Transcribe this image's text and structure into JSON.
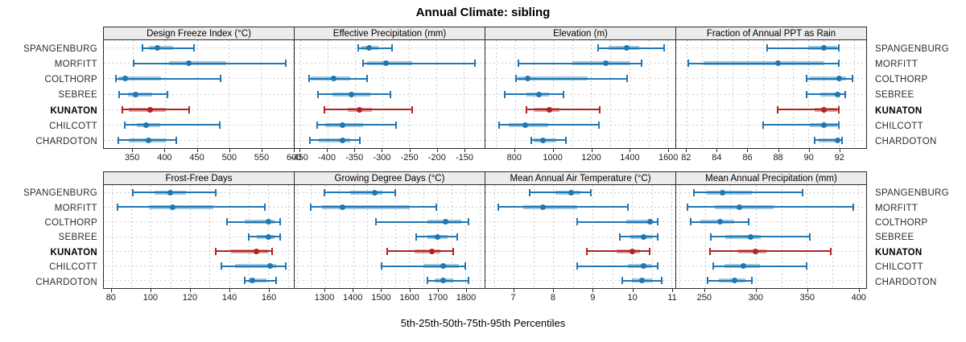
{
  "title": "Annual Climate: sibling",
  "caption": "5th-25th-50th-75th-95th Percentiles",
  "stations": [
    "SPANGENBURG",
    "MORFITT",
    "COLTHORP",
    "SEBREE",
    "KUNATON",
    "CHILCOTT",
    "CHARDOTON"
  ],
  "highlight_station": "KUNATON",
  "colors": {
    "series": "#1f77b4",
    "series_band": "rgba(31,119,180,0.42)",
    "highlight": "#b22222",
    "highlight_band": "rgba(178,34,34,0.42)",
    "strip_bg": "#ececec",
    "panel_border": "#2b2b2b",
    "grid": "#c9c9c9",
    "text": "#1a1a1a"
  },
  "chart_data": [
    {
      "type": "range-dotplot",
      "row": 0,
      "title": "Design Freeze Index (°C)",
      "xlim": [
        305,
        601
      ],
      "ticks": [
        350,
        400,
        450,
        500,
        550,
        600
      ],
      "grid_step": 50,
      "percentile_labels": [
        "p5",
        "p25",
        "p50",
        "p75",
        "p95"
      ],
      "series": [
        {
          "station": "SPANGENBURG",
          "percentiles": [
            365,
            375,
            389,
            413,
            445
          ]
        },
        {
          "station": "MORFITT",
          "percentiles": [
            351,
            406,
            437,
            496,
            589
          ]
        },
        {
          "station": "COLTHORP",
          "percentiles": [
            324,
            327,
            338,
            394,
            487
          ]
        },
        {
          "station": "SEBREE",
          "percentiles": [
            329,
            342,
            354,
            380,
            404
          ]
        },
        {
          "station": "KUNATON",
          "percentiles": [
            334,
            344,
            377,
            401,
            438
          ]
        },
        {
          "station": "CHILCOTT",
          "percentiles": [
            337,
            357,
            371,
            393,
            486
          ]
        },
        {
          "station": "CHARDOTON",
          "percentiles": [
            328,
            344,
            375,
            401,
            418
          ]
        }
      ]
    },
    {
      "type": "range-dotplot",
      "row": 0,
      "title": "Effective Precipitation (mm)",
      "xlim": [
        -460,
        -112
      ],
      "ticks": [
        -450,
        -400,
        -350,
        -300,
        -250,
        -200,
        -150
      ],
      "grid_step": 50,
      "percentile_labels": [
        "p5",
        "p25",
        "p50",
        "p75",
        "p95"
      ],
      "series": [
        {
          "station": "SPANGENBURG",
          "percentiles": [
            -343,
            -337,
            -323,
            -307,
            -282
          ]
        },
        {
          "station": "MORFITT",
          "percentiles": [
            -334,
            -327,
            -292,
            -244,
            -129
          ]
        },
        {
          "station": "COLTHORP",
          "percentiles": [
            -433,
            -430,
            -389,
            -358,
            -327
          ]
        },
        {
          "station": "SEBREE",
          "percentiles": [
            -417,
            -390,
            -356,
            -321,
            -284
          ]
        },
        {
          "station": "KUNATON",
          "percentiles": [
            -406,
            -363,
            -341,
            -319,
            -244
          ]
        },
        {
          "station": "CHILCOTT",
          "percentiles": [
            -419,
            -404,
            -373,
            -334,
            -274
          ]
        },
        {
          "station": "CHARDOTON",
          "percentiles": [
            -432,
            -416,
            -373,
            -358,
            -341
          ]
        }
      ]
    },
    {
      "type": "range-dotplot",
      "row": 0,
      "title": "Elevation (m)",
      "xlim": [
        646,
        1641
      ],
      "ticks": [
        800,
        1000,
        1200,
        1400,
        1600
      ],
      "grid_step": 100,
      "percentile_labels": [
        "p5",
        "p25",
        "p50",
        "p75",
        "p95"
      ],
      "series": [
        {
          "station": "SPANGENBURG",
          "percentiles": [
            1235,
            1290,
            1385,
            1450,
            1580
          ]
        },
        {
          "station": "MORFITT",
          "percentiles": [
            820,
            1100,
            1275,
            1400,
            1465
          ]
        },
        {
          "station": "COLTHORP",
          "percentiles": [
            805,
            815,
            868,
            1180,
            1390
          ]
        },
        {
          "station": "SEBREE",
          "percentiles": [
            746,
            863,
            926,
            981,
            1057
          ]
        },
        {
          "station": "KUNATON",
          "percentiles": [
            863,
            898,
            981,
            1036,
            1243
          ]
        },
        {
          "station": "CHILCOTT",
          "percentiles": [
            718,
            767,
            853,
            974,
            1239
          ]
        },
        {
          "station": "CHARDOTON",
          "percentiles": [
            888,
            905,
            946,
            1016,
            1068
          ]
        }
      ]
    },
    {
      "type": "range-dotplot",
      "row": 0,
      "title": "Fraction of Annual PPT as Rain",
      "xlim": [
        81.3,
        93.8
      ],
      "ticks": [
        82,
        84,
        86,
        88,
        90,
        92
      ],
      "grid_step": 1,
      "percentile_labels": [
        "p5",
        "p25",
        "p50",
        "p75",
        "p95"
      ],
      "series": [
        {
          "station": "SPANGENBURG",
          "percentiles": [
            87.3,
            90.0,
            91.0,
            91.9,
            92.0
          ]
        },
        {
          "station": "MORFITT",
          "percentiles": [
            82.1,
            83.1,
            88.0,
            91.0,
            92.0
          ]
        },
        {
          "station": "COLTHORP",
          "percentiles": [
            89.9,
            90.1,
            92.0,
            92.5,
            92.9
          ]
        },
        {
          "station": "SEBREE",
          "percentiles": [
            89.9,
            90.8,
            91.9,
            92.1,
            92.4
          ]
        },
        {
          "station": "KUNATON",
          "percentiles": [
            88.0,
            90.4,
            91.0,
            91.9,
            92.0
          ]
        },
        {
          "station": "CHILCOTT",
          "percentiles": [
            87.0,
            90.1,
            91.0,
            91.9,
            92.0
          ]
        },
        {
          "station": "CHARDOTON",
          "percentiles": [
            90.4,
            90.7,
            91.9,
            92.0,
            92.2
          ]
        }
      ]
    },
    {
      "type": "range-dotplot",
      "row": 1,
      "title": "Frost-Free Days",
      "xlim": [
        76,
        173
      ],
      "ticks": [
        80,
        100,
        120,
        140,
        160
      ],
      "grid_step": 10,
      "percentile_labels": [
        "p5",
        "p25",
        "p50",
        "p75",
        "p95"
      ],
      "series": [
        {
          "station": "SPANGENBURG",
          "percentiles": [
            91,
            102,
            110,
            118,
            133
          ]
        },
        {
          "station": "MORFITT",
          "percentiles": [
            83,
            99,
            111,
            132,
            158
          ]
        },
        {
          "station": "COLTHORP",
          "percentiles": [
            139,
            148,
            160,
            163,
            166
          ]
        },
        {
          "station": "SEBREE",
          "percentiles": [
            150,
            154,
            160,
            163,
            166
          ]
        },
        {
          "station": "KUNATON",
          "percentiles": [
            133,
            141,
            154,
            160,
            162
          ]
        },
        {
          "station": "CHILCOTT",
          "percentiles": [
            136,
            143,
            161,
            164,
            169
          ]
        },
        {
          "station": "CHARDOTON",
          "percentiles": [
            148,
            150,
            152,
            159,
            164
          ]
        }
      ]
    },
    {
      "type": "range-dotplot",
      "row": 1,
      "title": "Growing Degree Days (°C)",
      "xlim": [
        1192,
        1868
      ],
      "ticks": [
        1300,
        1400,
        1500,
        1600,
        1700,
        1800
      ],
      "grid_step": 50,
      "percentile_labels": [
        "p5",
        "p25",
        "p50",
        "p75",
        "p95"
      ],
      "series": [
        {
          "station": "SPANGENBURG",
          "percentiles": [
            1297,
            1391,
            1477,
            1504,
            1551
          ]
        },
        {
          "station": "MORFITT",
          "percentiles": [
            1248,
            1288,
            1361,
            1603,
            1696
          ]
        },
        {
          "station": "COLTHORP",
          "percentiles": [
            1480,
            1665,
            1730,
            1785,
            1810
          ]
        },
        {
          "station": "SEBREE",
          "percentiles": [
            1625,
            1665,
            1700,
            1735,
            1770
          ]
        },
        {
          "station": "KUNATON",
          "percentiles": [
            1520,
            1620,
            1680,
            1710,
            1755
          ]
        },
        {
          "station": "CHILCOTT",
          "percentiles": [
            1500,
            1650,
            1720,
            1775,
            1800
          ]
        },
        {
          "station": "CHARDOTON",
          "percentiles": [
            1665,
            1690,
            1720,
            1755,
            1810
          ]
        }
      ]
    },
    {
      "type": "range-dotplot",
      "row": 1,
      "title": "Mean Annual Air Temperature (°C)",
      "xlim": [
        6.28,
        11.1
      ],
      "ticks": [
        7,
        8,
        9,
        10,
        11
      ],
      "grid_step": 0.5,
      "percentile_labels": [
        "p5",
        "p25",
        "p50",
        "p75",
        "p95"
      ],
      "series": [
        {
          "station": "SPANGENBURG",
          "percentiles": [
            7.4,
            8.05,
            8.45,
            8.7,
            8.95
          ]
        },
        {
          "station": "MORFITT",
          "percentiles": [
            6.6,
            7.25,
            7.75,
            8.6,
            9.9
          ]
        },
        {
          "station": "COLTHORP",
          "percentiles": [
            8.6,
            9.85,
            10.45,
            10.55,
            10.65
          ]
        },
        {
          "station": "SEBREE",
          "percentiles": [
            9.7,
            9.95,
            10.3,
            10.5,
            10.65
          ]
        },
        {
          "station": "KUNATON",
          "percentiles": [
            8.85,
            9.6,
            10.0,
            10.2,
            10.45
          ]
        },
        {
          "station": "CHILCOTT",
          "percentiles": [
            8.6,
            9.9,
            10.3,
            10.5,
            10.65
          ]
        },
        {
          "station": "CHARDOTON",
          "percentiles": [
            9.75,
            10.0,
            10.25,
            10.5,
            10.75
          ]
        }
      ]
    },
    {
      "type": "range-dotplot",
      "row": 1,
      "title": "Mean Annual Precipitation (mm)",
      "xlim": [
        222,
        408
      ],
      "ticks": [
        250,
        300,
        350,
        400
      ],
      "grid_step": 25,
      "percentile_labels": [
        "p5",
        "p25",
        "p50",
        "p75",
        "p95"
      ],
      "series": [
        {
          "station": "SPANGENBURG",
          "percentiles": [
            239,
            252,
            267,
            296,
            346
          ]
        },
        {
          "station": "MORFITT",
          "percentiles": [
            233,
            260,
            284,
            317,
            395
          ]
        },
        {
          "station": "COLTHORP",
          "percentiles": [
            236,
            246,
            265,
            279,
            293
          ]
        },
        {
          "station": "SEBREE",
          "percentiles": [
            256,
            270,
            295,
            305,
            353
          ]
        },
        {
          "station": "KUNATON",
          "percentiles": [
            255,
            283,
            300,
            310,
            373
          ]
        },
        {
          "station": "CHILCOTT",
          "percentiles": [
            258,
            269,
            288,
            304,
            350
          ]
        },
        {
          "station": "CHARDOTON",
          "percentiles": [
            253,
            264,
            279,
            290,
            296
          ]
        }
      ]
    }
  ]
}
